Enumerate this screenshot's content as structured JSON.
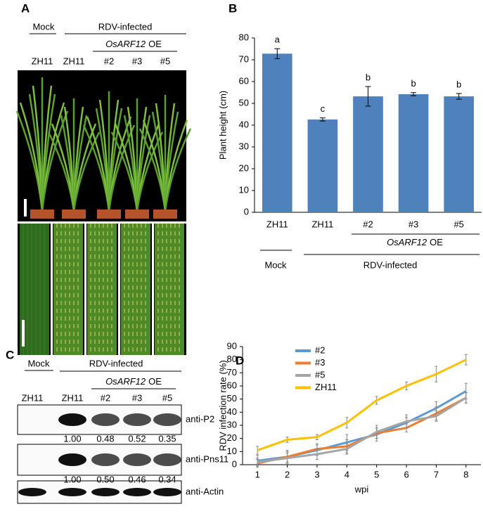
{
  "panel_a": {
    "label": "A",
    "mock": "Mock",
    "infected": "RDV-infected",
    "gene": "OsARF12",
    "gene_suffix": "OE",
    "lanes": [
      "ZH11",
      "ZH11",
      "#2",
      "#3",
      "#5"
    ]
  },
  "panel_c": {
    "label": "C",
    "mock": "Mock",
    "infected": "RDV-infected",
    "gene": "OsARF12",
    "gene_suffix": "OE",
    "lanes": [
      "ZH11",
      "ZH11",
      "#2",
      "#3",
      "#5"
    ],
    "blots": [
      {
        "name": "anti-P2",
        "quant": [
          "1.00",
          "0.48",
          "0.52",
          "0.35"
        ]
      },
      {
        "name": "anti-Pns11",
        "quant": [
          "1.00",
          "0.50",
          "0.46",
          "0.34"
        ]
      },
      {
        "name": "anti-Actin"
      }
    ]
  },
  "chart_data": [
    {
      "type": "bar",
      "panel_label": "B",
      "y_label": "Plant height (cm)",
      "categories": [
        "ZH11",
        "ZH11",
        "#2",
        "#3",
        "#5"
      ],
      "values": [
        72.8,
        42.6,
        53.2,
        54.2,
        53.2
      ],
      "errors": [
        2.3,
        0.7,
        4.5,
        0.7,
        1.3
      ],
      "letters": [
        "a",
        "c",
        "b",
        "b",
        "b"
      ],
      "color": "#4f81bd",
      "ylim": [
        0,
        80
      ],
      "yticks": [
        0,
        10,
        20,
        30,
        40,
        50,
        60,
        70,
        80
      ],
      "mock": "Mock",
      "infected": "RDV-infected",
      "gene": "OsARF12",
      "gene_suffix": "OE"
    },
    {
      "type": "line",
      "panel_label": "D",
      "x_label": "wpi",
      "y_label": "RDV infection rate (%)",
      "x": [
        1,
        2,
        3,
        4,
        5,
        6,
        7,
        8
      ],
      "xlim": [
        0.5,
        8.5
      ],
      "xticks": [
        1,
        2,
        3,
        4,
        5,
        6,
        7,
        8
      ],
      "ylim": [
        0,
        90
      ],
      "yticks": [
        0,
        10,
        20,
        30,
        40,
        50,
        60,
        70,
        80,
        90
      ],
      "legend": "upper left",
      "series": [
        {
          "name": "#2",
          "color": "#5b9bd5",
          "values": [
            3,
            6,
            11,
            17,
            23,
            32,
            43,
            56
          ],
          "errors": [
            4,
            5,
            4,
            6,
            5,
            4,
            5,
            6
          ]
        },
        {
          "name": "#3",
          "color": "#ed7d31",
          "values": [
            1,
            6,
            12,
            14,
            24,
            28,
            39,
            51
          ],
          "errors": [
            3,
            4,
            4,
            5,
            4,
            3,
            5,
            4
          ]
        },
        {
          "name": "#5",
          "color": "#a5a5a5",
          "values": [
            2,
            5,
            8,
            12,
            25,
            33,
            37,
            51
          ],
          "errors": [
            3,
            4,
            4,
            4,
            5,
            5,
            4,
            4
          ]
        },
        {
          "name": "ZH11",
          "color": "#ffc000",
          "values": [
            11,
            19,
            21,
            32,
            49,
            60,
            69,
            80
          ],
          "errors": [
            3,
            2,
            2,
            4,
            3,
            3,
            6,
            4
          ]
        }
      ]
    }
  ]
}
